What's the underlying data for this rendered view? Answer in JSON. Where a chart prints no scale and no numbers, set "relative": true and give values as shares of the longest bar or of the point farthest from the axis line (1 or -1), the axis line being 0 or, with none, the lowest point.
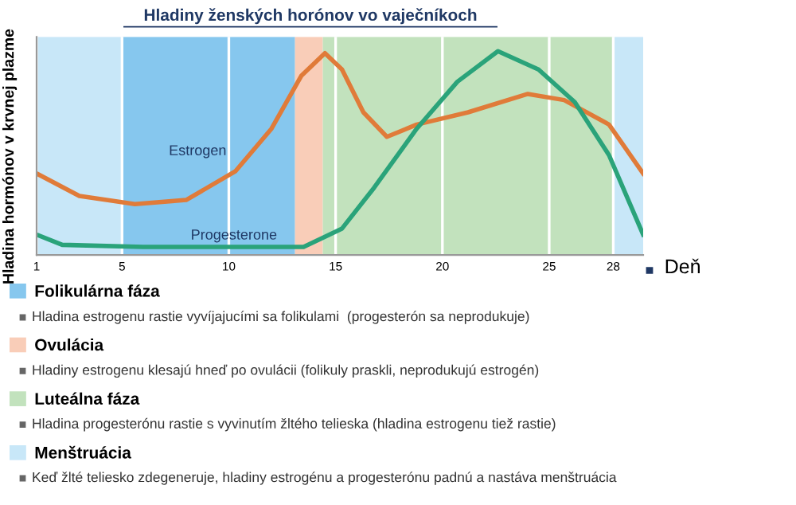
{
  "chart_data": {
    "type": "line",
    "title": "Hladiny ženských horónov vo vaječníkoch",
    "xlabel": "Deň",
    "ylabel": "Hladina hormónov v krvnej plazme",
    "relative": true,
    "xlim": [
      1,
      29.4
    ],
    "xticks": [
      1,
      5,
      10,
      15,
      20,
      25,
      28
    ],
    "grid": "x",
    "legend": "bottom left",
    "series": [
      {
        "name": "Estrogen",
        "color": "#e07b39",
        "x": [
          1,
          3,
          5.6,
          8,
          10.3,
          12,
          13.4,
          14.5,
          15.3,
          16.3,
          17.4,
          18.8,
          21.2,
          24,
          25.7,
          27.8,
          29.4
        ],
        "values": [
          0.4,
          0.29,
          0.25,
          0.27,
          0.41,
          0.62,
          0.88,
          0.99,
          0.91,
          0.7,
          0.58,
          0.64,
          0.7,
          0.79,
          0.76,
          0.64,
          0.4
        ]
      },
      {
        "name": "Progesterone",
        "color": "#2aa37a",
        "x": [
          1,
          2.2,
          6,
          13.5,
          14.5,
          15.3,
          16.8,
          18.8,
          20.7,
          22.6,
          24.5,
          26.2,
          27.8,
          29.4
        ],
        "values": [
          0.1,
          0.05,
          0.04,
          0.04,
          0.09,
          0.13,
          0.33,
          0.62,
          0.85,
          1.0,
          0.91,
          0.75,
          0.49,
          0.1
        ]
      }
    ],
    "bands": [
      {
        "axis": "x",
        "from": 5,
        "to": 13.1,
        "label": "Folikulárna fáza",
        "color": "#86c7ee"
      },
      {
        "axis": "x",
        "from": 13.1,
        "to": 14.4,
        "label": "Ovulácia",
        "color": "#f9cdb8"
      },
      {
        "axis": "x",
        "from": 14.4,
        "to": 28,
        "label": "Luteálna fáza",
        "color": "#c2e2bd"
      },
      {
        "axis": "x",
        "from": 1,
        "to": 5,
        "label": "Menštruácia",
        "color": "#c8e7f8"
      },
      {
        "axis": "x",
        "from": 28,
        "to": 29.4,
        "label": null,
        "color": "#c8e7f8"
      }
    ],
    "annotations": [
      "Hladina estrogenu rastie vyvíjajucími sa folikulami  (progesterón sa neprodukuje)",
      "Hladiny estrogenu klesajú hneď po ovulácii (folikuly praskli, neprodukujú estrogén)",
      "Hladina progesterónu rastie s vyvinutím žltého telieska (hladina estrogenu tiež rastie)",
      "Keď žlté teliesko zdegeneruje, hladiny estrogénu a progesterónu padnú a nastáva menštruácia"
    ]
  }
}
